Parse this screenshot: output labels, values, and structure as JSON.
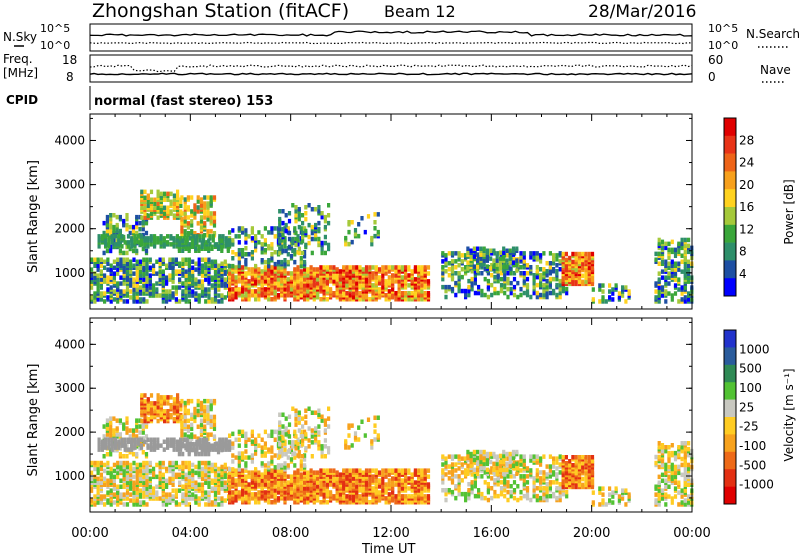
{
  "header": {
    "station": "Zhongshan Station (fitACF)",
    "beam": "Beam 12",
    "date": "28/Mar/2016"
  },
  "nsky_panel": {
    "left_label": "N.Sky",
    "left_ticks": [
      "10^5",
      "10^0"
    ],
    "right_ticks": [
      "10^5",
      "10^0"
    ],
    "right_label": "N.Search"
  },
  "freq_panel": {
    "left_label_line1": "Freq.",
    "left_label_line2": "[MHz]",
    "left_ticks": [
      "18",
      "8"
    ],
    "right_ticks": [
      "60",
      "0"
    ],
    "right_label": "Nave"
  },
  "cpid_panel": {
    "label": "CPID",
    "text": "normal (fast stereo) 153"
  },
  "chart_data": [
    {
      "type": "heatmap",
      "name": "power",
      "ylabel": "Slant Range [km]",
      "xlabel": "Time UT",
      "x_ticks": [
        "00:00",
        "04:00",
        "08:00",
        "12:00",
        "16:00",
        "20:00",
        "00:00"
      ],
      "y_ticks": [
        "1000",
        "2000",
        "3000",
        "4000"
      ],
      "ylim": [
        180,
        4600
      ],
      "xlim_hours": [
        0,
        24
      ],
      "colorbar_label": "Power [dB]",
      "colorbar_ticks": [
        "4",
        "8",
        "12",
        "16",
        "20",
        "24",
        "28"
      ],
      "colorbar_colors": [
        "#0000ff",
        "#1d4fa3",
        "#2e8f6a",
        "#3aa63a",
        "#a5c93a",
        "#ffd21f",
        "#f7a01c",
        "#ee6418",
        "#e83317",
        "#e00000"
      ]
    },
    {
      "type": "heatmap",
      "name": "velocity",
      "ylabel": "Slant Range [km]",
      "xlabel": "Time UT",
      "x_ticks": [
        "00:00",
        "04:00",
        "08:00",
        "12:00",
        "16:00",
        "20:00",
        "00:00"
      ],
      "y_ticks": [
        "1000",
        "2000",
        "3000",
        "4000"
      ],
      "ylim": [
        180,
        4600
      ],
      "xlim_hours": [
        0,
        24
      ],
      "colorbar_label": "Velocity [m s⁻¹]",
      "colorbar_ticks": [
        "1000",
        "500",
        "100",
        "25",
        "-25",
        "-100",
        "-500",
        "-1000"
      ],
      "colorbar_colors": [
        "#2233cc",
        "#2b5c9c",
        "#2f8a55",
        "#52c233",
        "#c8c8c0",
        "#ffcc22",
        "#f7a21d",
        "#ee6a18",
        "#e33012",
        "#e00000"
      ]
    }
  ],
  "colors": {
    "axis": "#000000",
    "ground_scatter": "#9a9a9a"
  }
}
